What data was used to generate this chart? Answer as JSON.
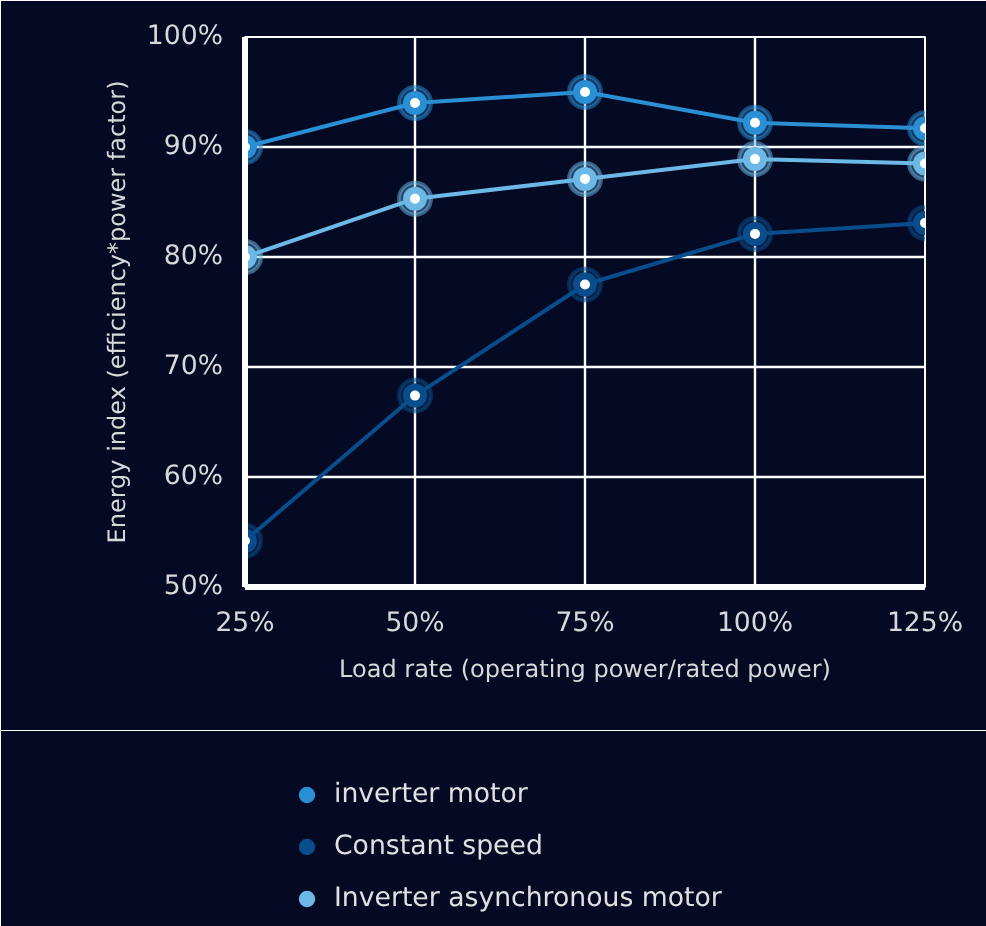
{
  "chart_data": {
    "type": "line",
    "xlabel": "Load rate (operating power/rated power)",
    "ylabel": "Energy index (efficiency*power factor)",
    "categories": [
      "25%",
      "50%",
      "75%",
      "100%",
      "125%"
    ],
    "series": [
      {
        "name": "inverter motor",
        "color": "#2a8fd4",
        "values": [
          90,
          94,
          95,
          92.2,
          91.7
        ]
      },
      {
        "name": "Constant speed",
        "color": "#0a4d8c",
        "values": [
          54.2,
          67.4,
          77.5,
          82.1,
          83.1
        ]
      },
      {
        "name": "Inverter asynchronous motor",
        "color": "#6cb8e6",
        "values": [
          80,
          85.3,
          87.1,
          88.9,
          88.5
        ]
      }
    ],
    "ylim": [
      50,
      100
    ],
    "yticks": [
      {
        "value": 50,
        "label": "50%"
      },
      {
        "value": 60,
        "label": "60%"
      },
      {
        "value": 70,
        "label": "70%"
      },
      {
        "value": 80,
        "label": "80%"
      },
      {
        "value": 90,
        "label": "90%"
      },
      {
        "value": 100,
        "label": "100%"
      }
    ],
    "grid": true,
    "legend": "bottom",
    "marker": "circle",
    "line_style": "solid"
  }
}
